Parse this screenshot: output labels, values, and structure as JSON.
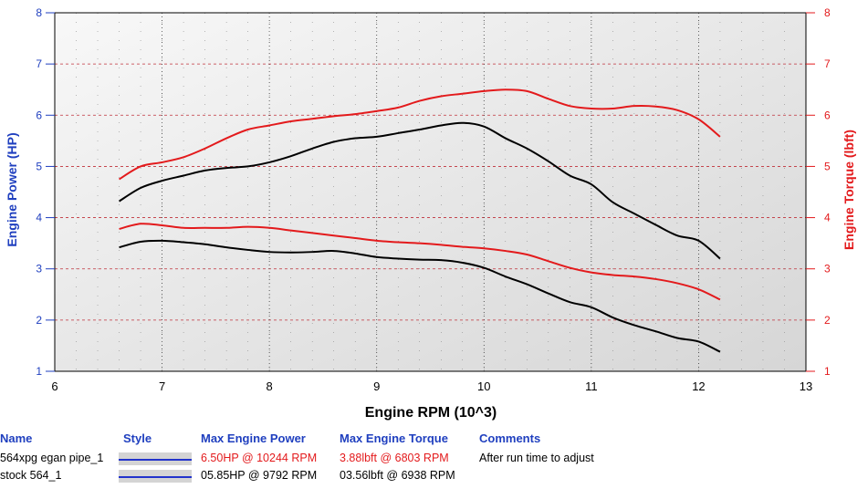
{
  "chart_data": {
    "type": "line",
    "xlabel": "Engine RPM (10^3)",
    "ylabel_left": "Engine Power (HP)",
    "ylabel_right": "Engine Torque (lbft)",
    "xlim": [
      6,
      13
    ],
    "ylim": [
      1,
      8
    ],
    "xticks": [
      6,
      7,
      8,
      9,
      10,
      11,
      12,
      13
    ],
    "yticks": [
      1,
      2,
      3,
      4,
      5,
      6,
      7,
      8
    ],
    "grid": true,
    "series": [
      {
        "color": "#e31a1c",
        "axis": "power",
        "x": [
          6.6,
          6.8,
          7.0,
          7.2,
          7.4,
          7.6,
          7.8,
          8.0,
          8.2,
          8.4,
          8.6,
          8.8,
          9.0,
          9.2,
          9.4,
          9.6,
          9.8,
          10.0,
          10.2,
          10.4,
          10.6,
          10.8,
          11.0,
          11.2,
          11.4,
          11.6,
          11.8,
          12.0,
          12.2
        ],
        "y": [
          4.75,
          5.0,
          5.08,
          5.18,
          5.35,
          5.55,
          5.72,
          5.8,
          5.88,
          5.93,
          5.98,
          6.02,
          6.08,
          6.15,
          6.28,
          6.37,
          6.42,
          6.47,
          6.5,
          6.47,
          6.32,
          6.18,
          6.13,
          6.13,
          6.18,
          6.17,
          6.1,
          5.92,
          5.58
        ]
      },
      {
        "color": "#000000",
        "axis": "power",
        "x": [
          6.6,
          6.8,
          7.0,
          7.2,
          7.4,
          7.6,
          7.8,
          8.0,
          8.2,
          8.4,
          8.6,
          8.8,
          9.0,
          9.2,
          9.4,
          9.6,
          9.8,
          10.0,
          10.2,
          10.4,
          10.6,
          10.8,
          11.0,
          11.2,
          11.4,
          11.6,
          11.8,
          12.0,
          12.2
        ],
        "y": [
          4.32,
          4.58,
          4.72,
          4.82,
          4.92,
          4.97,
          5.0,
          5.08,
          5.2,
          5.35,
          5.48,
          5.55,
          5.58,
          5.65,
          5.72,
          5.8,
          5.85,
          5.78,
          5.55,
          5.35,
          5.1,
          4.82,
          4.65,
          4.3,
          4.08,
          3.86,
          3.65,
          3.55,
          3.2
        ]
      },
      {
        "color": "#e31a1c",
        "axis": "torque",
        "x": [
          6.6,
          6.8,
          7.0,
          7.2,
          7.4,
          7.6,
          7.8,
          8.0,
          8.2,
          8.4,
          8.6,
          8.8,
          9.0,
          9.2,
          9.4,
          9.6,
          9.8,
          10.0,
          10.2,
          10.4,
          10.6,
          10.8,
          11.0,
          11.2,
          11.4,
          11.6,
          11.8,
          12.0,
          12.2
        ],
        "y": [
          3.78,
          3.88,
          3.85,
          3.8,
          3.8,
          3.8,
          3.82,
          3.8,
          3.75,
          3.7,
          3.65,
          3.6,
          3.55,
          3.52,
          3.5,
          3.47,
          3.43,
          3.4,
          3.35,
          3.28,
          3.15,
          3.02,
          2.93,
          2.88,
          2.85,
          2.8,
          2.72,
          2.6,
          2.4
        ]
      },
      {
        "color": "#000000",
        "axis": "torque",
        "x": [
          6.6,
          6.8,
          7.0,
          7.2,
          7.4,
          7.6,
          7.8,
          8.0,
          8.2,
          8.4,
          8.6,
          8.8,
          9.0,
          9.2,
          9.4,
          9.6,
          9.8,
          10.0,
          10.2,
          10.4,
          10.6,
          10.8,
          11.0,
          11.2,
          11.4,
          11.6,
          11.8,
          12.0,
          12.2
        ],
        "y": [
          3.42,
          3.53,
          3.55,
          3.52,
          3.48,
          3.42,
          3.37,
          3.33,
          3.32,
          3.33,
          3.35,
          3.3,
          3.23,
          3.2,
          3.18,
          3.17,
          3.12,
          3.02,
          2.85,
          2.7,
          2.52,
          2.35,
          2.25,
          2.05,
          1.9,
          1.78,
          1.65,
          1.58,
          1.38
        ]
      }
    ]
  },
  "legend_table": {
    "headers": {
      "name": "Name",
      "style": "Style",
      "max_power": "Max Engine Power",
      "max_torque": "Max Engine Torque",
      "comments": "Comments"
    },
    "rows": [
      {
        "name": "564xpg egan pipe_1",
        "max_power": "6.50HP @ 10244 RPM",
        "max_torque": "3.88lbft @ 6803 RPM",
        "comments": "After run time to adjust",
        "color": "#e31a1c"
      },
      {
        "name": "stock 564_1",
        "max_power": "05.85HP @ 9792 RPM",
        "max_torque": "03.56lbft @ 6938 RPM",
        "comments": "",
        "color": "#000000"
      }
    ]
  }
}
